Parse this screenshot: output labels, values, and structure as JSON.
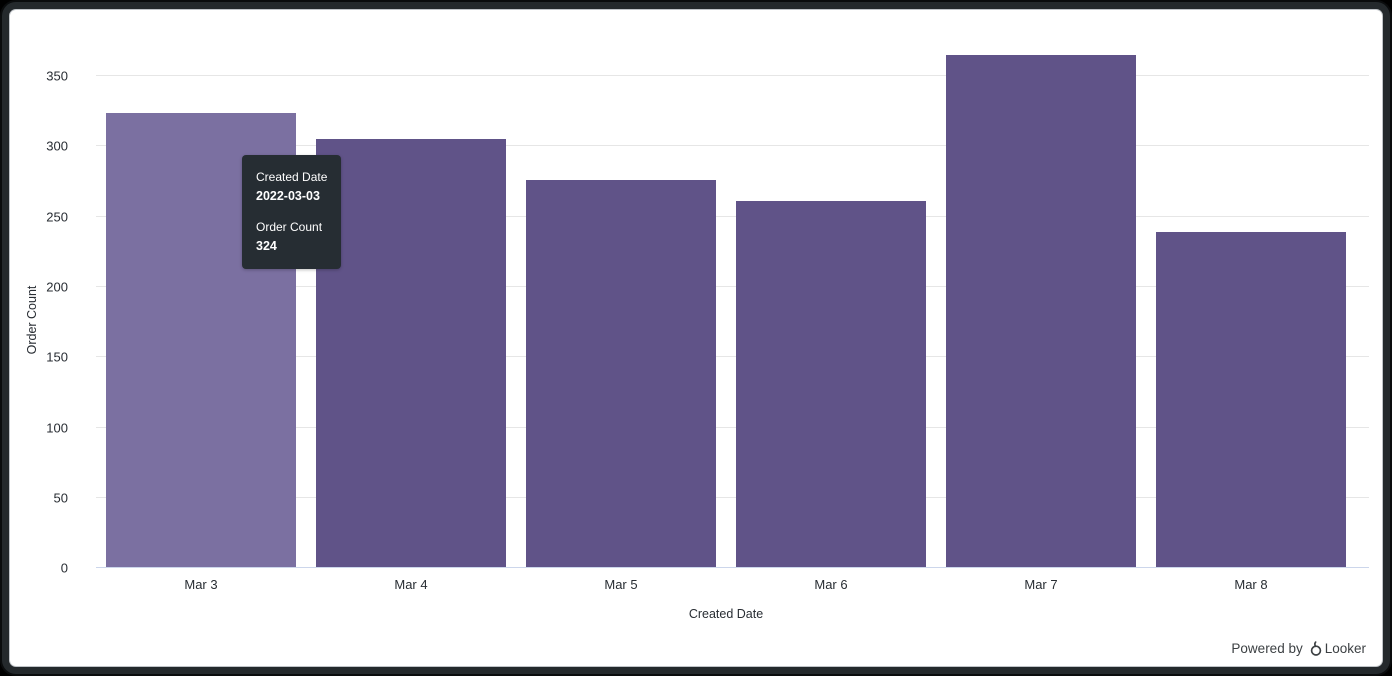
{
  "chart_data": {
    "type": "bar",
    "title": "",
    "categories": [
      "Mar 3",
      "Mar 4",
      "Mar 5",
      "Mar 6",
      "Mar 7",
      "Mar 8"
    ],
    "values": [
      324,
      305,
      276,
      261,
      365,
      239
    ],
    "highlighted_index": 0,
    "xlabel": "Created Date",
    "ylabel": "Order Count",
    "ylim": [
      0,
      390
    ],
    "yticks": [
      0,
      50,
      100,
      150,
      200,
      250,
      300,
      350
    ],
    "grid": true,
    "legend": "none",
    "bar_color": "#605388",
    "bar_highlight_color": "#7b70a1",
    "gridline_color": "#e6e6e6",
    "axis_line_color": "#ccd6eb"
  },
  "tooltip": {
    "dimension_label": "Created Date",
    "dimension_value": "2022-03-03",
    "measure_label": "Order Count",
    "measure_value": "324",
    "background": "#262d33"
  },
  "footer": {
    "powered_by": "Powered by",
    "brand": "Looker"
  }
}
